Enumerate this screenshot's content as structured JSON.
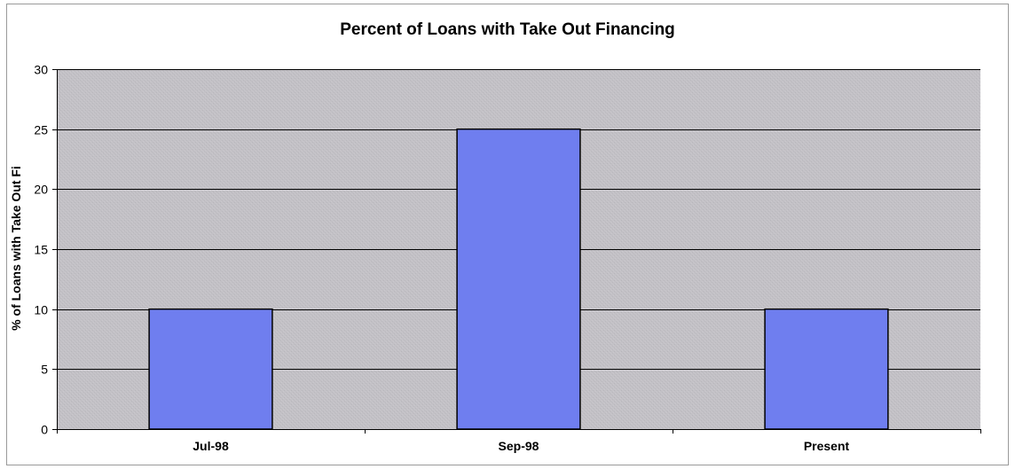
{
  "chart_data": {
    "type": "bar",
    "title": "Percent of Loans with Take Out Financing",
    "xlabel": "",
    "ylabel": "% of Loans with Take Out Fi",
    "categories": [
      "Jul-98",
      "Sep-98",
      "Present"
    ],
    "values": [
      10,
      25,
      10
    ],
    "ylim": [
      0,
      30
    ],
    "yticks": [
      0,
      5,
      10,
      15,
      20,
      25,
      30
    ],
    "grid": true,
    "legend": "none",
    "colors": {
      "bar_fill": "#6f7eef",
      "bar_stroke": "#000000",
      "plot_background": "#c0c0c0",
      "gridline": "#000000"
    }
  }
}
